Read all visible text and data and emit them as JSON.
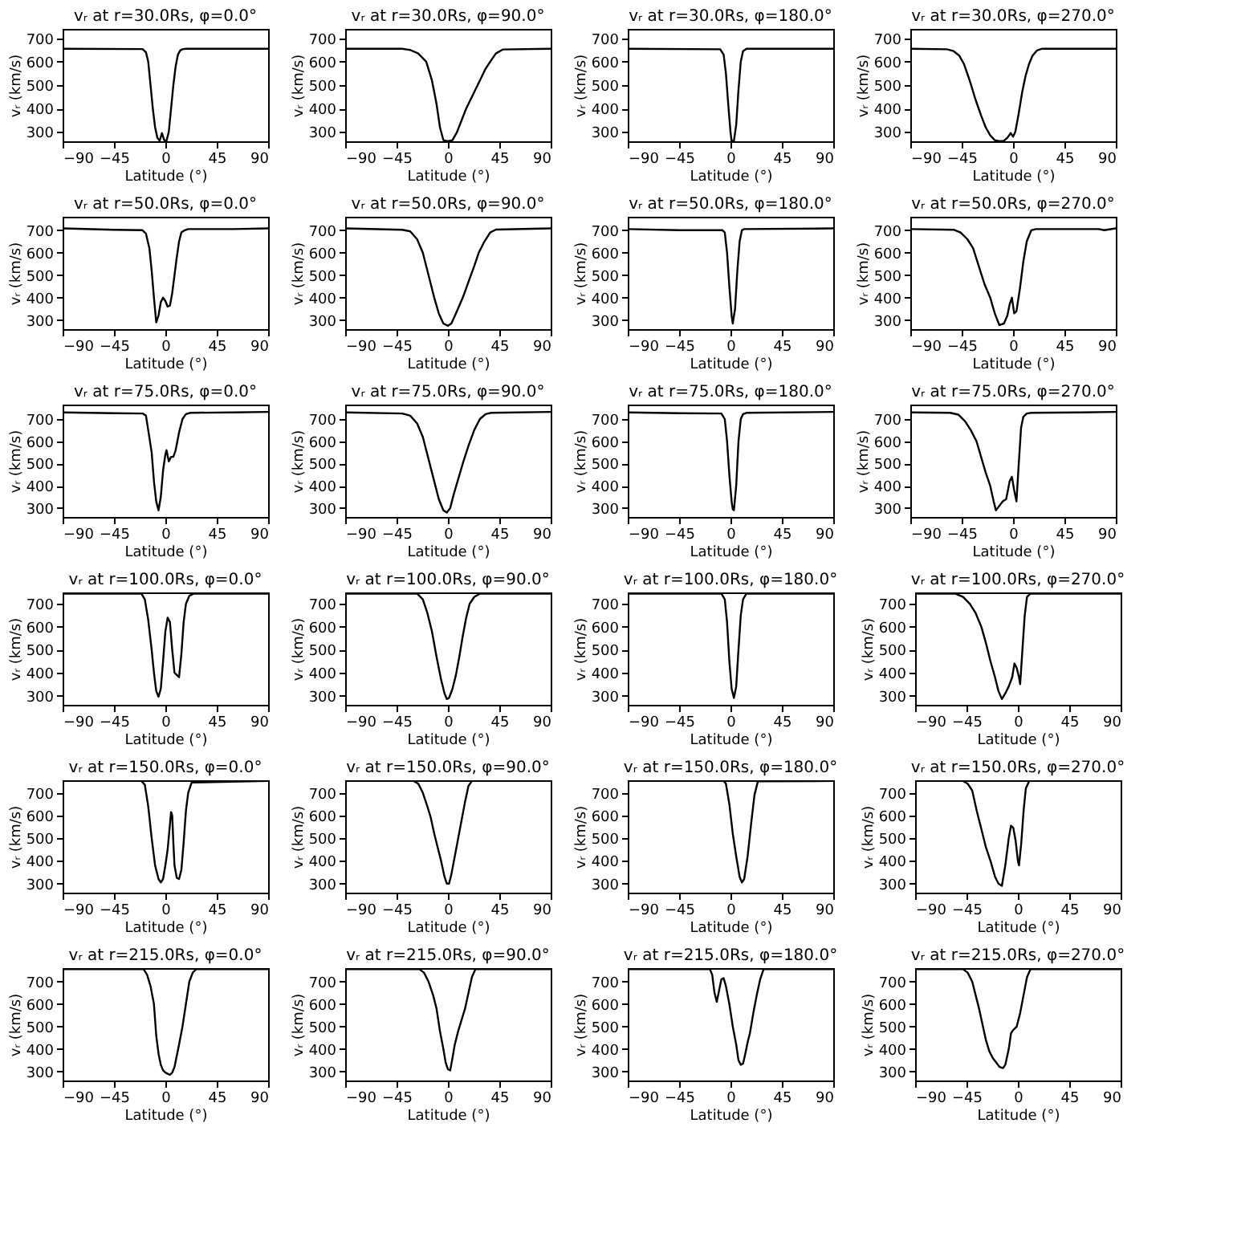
{
  "chart_data": [
    {
      "type": "line",
      "title": "vᵣ at r=30.0Rs, φ=0.0°",
      "xlabel": "Latitude (°)",
      "ylabel": "vᵣ (km/s)",
      "color": "#000000",
      "xlim": [
        -90,
        90
      ],
      "ylim": [
        260,
        740
      ],
      "xticks": [
        -90,
        -45,
        0,
        45,
        90
      ],
      "yticks": [
        300,
        400,
        500,
        600,
        700
      ],
      "x": [
        -90,
        -20,
        -17,
        -15,
        -13,
        -11,
        -9,
        -7,
        -5,
        -3,
        -1,
        1,
        3,
        5,
        7,
        9,
        11,
        13,
        15,
        18,
        90
      ],
      "values": [
        655,
        654,
        640,
        600,
        500,
        400,
        320,
        275,
        262,
        295,
        265,
        262,
        300,
        400,
        500,
        580,
        630,
        648,
        653,
        655,
        655
      ]
    },
    {
      "type": "line",
      "title": "vᵣ at r=30.0Rs, φ=90.0°",
      "xlabel": "Latitude (°)",
      "ylabel": "vᵣ (km/s)",
      "color": "#000000",
      "xlim": [
        -90,
        90
      ],
      "ylim": [
        260,
        740
      ],
      "xticks": [
        -90,
        -45,
        0,
        45,
        90
      ],
      "yticks": [
        300,
        400,
        500,
        600,
        700
      ],
      "x": [
        -90,
        -40,
        -33,
        -26,
        -19,
        -14,
        -10,
        -7,
        -4,
        0,
        4,
        8,
        12,
        16,
        22,
        28,
        33,
        37,
        42,
        48,
        90
      ],
      "values": [
        655,
        655,
        650,
        635,
        600,
        520,
        420,
        320,
        265,
        260,
        265,
        300,
        350,
        400,
        460,
        520,
        570,
        600,
        635,
        652,
        655
      ]
    },
    {
      "type": "line",
      "title": "vᵣ at r=30.0Rs, φ=180.0°",
      "xlabel": "Latitude (°)",
      "ylabel": "vᵣ (km/s)",
      "color": "#000000",
      "xlim": [
        -90,
        90
      ],
      "ylim": [
        260,
        740
      ],
      "xticks": [
        -90,
        -45,
        0,
        45,
        90
      ],
      "yticks": [
        300,
        400,
        500,
        600,
        700
      ],
      "x": [
        -90,
        -9,
        -6,
        -4,
        -2,
        0,
        1,
        3,
        5,
        7,
        9,
        11,
        14,
        90
      ],
      "values": [
        655,
        653,
        630,
        550,
        420,
        300,
        260,
        262,
        330,
        480,
        600,
        645,
        655,
        655
      ]
    },
    {
      "type": "line",
      "title": "vᵣ at r=30.0Rs, φ=270.0°",
      "xlabel": "Latitude (°)",
      "ylabel": "vᵣ (km/s)",
      "color": "#000000",
      "xlim": [
        -90,
        90
      ],
      "ylim": [
        260,
        740
      ],
      "xticks": [
        -90,
        -45,
        0,
        45,
        90
      ],
      "yticks": [
        300,
        400,
        500,
        600,
        700
      ],
      "x": [
        -90,
        -58,
        -52,
        -47,
        -43,
        -38,
        -33,
        -28,
        -24,
        -20,
        -16,
        -12,
        -8,
        -5,
        -2,
        0,
        2,
        5,
        8,
        11,
        14,
        17,
        21,
        25,
        90
      ],
      "values": [
        655,
        653,
        645,
        625,
        590,
        520,
        440,
        370,
        320,
        285,
        265,
        260,
        262,
        275,
        295,
        280,
        300,
        380,
        470,
        540,
        590,
        625,
        648,
        655,
        655
      ]
    },
    {
      "type": "line",
      "title": "vᵣ at r=50.0Rs, φ=0.0°",
      "xlabel": "Latitude (°)",
      "ylabel": "vᵣ (km/s)",
      "color": "#000000",
      "xlim": [
        -90,
        90
      ],
      "ylim": [
        260,
        760
      ],
      "xticks": [
        -90,
        -45,
        0,
        45,
        90
      ],
      "yticks": [
        300,
        400,
        500,
        600,
        700
      ],
      "x": [
        -90,
        -45,
        -20,
        -17,
        -14,
        -12,
        -10,
        -8,
        -6,
        -4,
        -2,
        0,
        2,
        4,
        6,
        8,
        10,
        12,
        14,
        17,
        20,
        60,
        90
      ],
      "values": [
        708,
        702,
        700,
        685,
        620,
        520,
        400,
        290,
        320,
        380,
        400,
        385,
        360,
        365,
        420,
        500,
        580,
        650,
        690,
        700,
        705,
        705,
        708
      ]
    },
    {
      "type": "line",
      "title": "vᵣ at r=50.0Rs, φ=90.0°",
      "xlabel": "Latitude (°)",
      "ylabel": "vᵣ (km/s)",
      "color": "#000000",
      "xlim": [
        -90,
        90
      ],
      "ylim": [
        260,
        760
      ],
      "xticks": [
        -90,
        -45,
        0,
        45,
        90
      ],
      "yticks": [
        300,
        400,
        500,
        600,
        700
      ],
      "x": [
        -90,
        -40,
        -33,
        -27,
        -22,
        -17,
        -12,
        -8,
        -4,
        0,
        3,
        7,
        13,
        18,
        23,
        27,
        32,
        37,
        42,
        90
      ],
      "values": [
        708,
        702,
        695,
        660,
        600,
        500,
        400,
        330,
        285,
        275,
        285,
        330,
        400,
        470,
        540,
        600,
        650,
        690,
        703,
        708
      ]
    },
    {
      "type": "line",
      "title": "vᵣ at r=50.0Rs, φ=180.0°",
      "xlabel": "Latitude (°)",
      "ylabel": "vᵣ (km/s)",
      "color": "#000000",
      "xlim": [
        -90,
        90
      ],
      "ylim": [
        260,
        760
      ],
      "xticks": [
        -90,
        -45,
        0,
        45,
        90
      ],
      "yticks": [
        300,
        400,
        500,
        600,
        700
      ],
      "x": [
        -90,
        -45,
        -7,
        -5,
        -3,
        -1,
        1,
        2,
        4,
        6,
        8,
        10,
        12,
        90
      ],
      "values": [
        705,
        700,
        700,
        690,
        600,
        450,
        320,
        285,
        350,
        520,
        650,
        700,
        705,
        708
      ]
    },
    {
      "type": "line",
      "title": "vᵣ at r=50.0Rs, φ=270.0°",
      "xlabel": "Latitude (°)",
      "ylabel": "vᵣ (km/s)",
      "color": "#000000",
      "xlim": [
        -90,
        90
      ],
      "ylim": [
        260,
        760
      ],
      "xticks": [
        -90,
        -45,
        0,
        45,
        90
      ],
      "yticks": [
        300,
        400,
        500,
        600,
        700
      ],
      "x": [
        -90,
        -52,
        -46,
        -40,
        -35,
        -30,
        -25,
        -20,
        -16,
        -12,
        -8,
        -5,
        -3,
        -1,
        1,
        3,
        6,
        9,
        12,
        16,
        20,
        60,
        75,
        80,
        90
      ],
      "values": [
        705,
        702,
        690,
        660,
        620,
        540,
        460,
        400,
        330,
        278,
        285,
        320,
        370,
        400,
        330,
        340,
        440,
        560,
        650,
        700,
        705,
        705,
        705,
        700,
        708
      ]
    },
    {
      "type": "line",
      "title": "vᵣ at r=75.0Rs, φ=0.0°",
      "xlabel": "Latitude (°)",
      "ylabel": "vᵣ (km/s)",
      "color": "#000000",
      "xlim": [
        -90,
        90
      ],
      "ylim": [
        260,
        765
      ],
      "xticks": [
        -90,
        -45,
        0,
        45,
        90
      ],
      "yticks": [
        300,
        400,
        500,
        600,
        700
      ],
      "x": [
        -90,
        -45,
        -20,
        -17,
        -15,
        -12,
        -10,
        -8,
        -6,
        -4,
        -2,
        0,
        1,
        3,
        5,
        7,
        9,
        12,
        15,
        18,
        22,
        60,
        90
      ],
      "values": [
        730,
        726,
        725,
        715,
        650,
        550,
        420,
        330,
        290,
        350,
        470,
        540,
        560,
        510,
        530,
        530,
        560,
        640,
        700,
        722,
        728,
        730,
        732
      ]
    },
    {
      "type": "line",
      "title": "vᵣ at r=75.0Rs, φ=90.0°",
      "xlabel": "Latitude (°)",
      "ylabel": "vᵣ (km/s)",
      "color": "#000000",
      "xlim": [
        -90,
        90
      ],
      "ylim": [
        260,
        765
      ],
      "xticks": [
        -90,
        -45,
        0,
        45,
        90
      ],
      "yticks": [
        300,
        400,
        500,
        600,
        700
      ],
      "x": [
        -90,
        -40,
        -33,
        -27,
        -22,
        -17,
        -12,
        -8,
        -4,
        -1,
        2,
        5,
        9,
        13,
        18,
        23,
        28,
        33,
        38,
        90
      ],
      "values": [
        730,
        725,
        715,
        680,
        620,
        520,
        420,
        340,
        290,
        280,
        300,
        360,
        430,
        500,
        580,
        650,
        700,
        722,
        728,
        732
      ]
    },
    {
      "type": "line",
      "title": "vᵣ at r=75.0Rs, φ=180.0°",
      "xlabel": "Latitude (°)",
      "ylabel": "vᵣ (km/s)",
      "color": "#000000",
      "xlim": [
        -90,
        90
      ],
      "ylim": [
        260,
        765
      ],
      "xticks": [
        -90,
        -45,
        0,
        45,
        90
      ],
      "yticks": [
        300,
        400,
        500,
        600,
        700
      ],
      "x": [
        -90,
        -45,
        -8,
        -5,
        -3,
        -1,
        1,
        2,
        3,
        5,
        7,
        9,
        11,
        14,
        90
      ],
      "values": [
        730,
        726,
        725,
        700,
        600,
        450,
        330,
        295,
        290,
        400,
        600,
        700,
        722,
        728,
        732
      ]
    },
    {
      "type": "line",
      "title": "vᵣ at r=75.0Rs, φ=270.0°",
      "xlabel": "Latitude (°)",
      "ylabel": "vᵣ (km/s)",
      "color": "#000000",
      "xlim": [
        -90,
        90
      ],
      "ylim": [
        260,
        765
      ],
      "xticks": [
        -90,
        -45,
        0,
        45,
        90
      ],
      "yticks": [
        300,
        400,
        500,
        600,
        700
      ],
      "x": [
        -90,
        -55,
        -48,
        -42,
        -37,
        -32,
        -28,
        -24,
        -20,
        -17,
        -15,
        -12,
        -9,
        -6,
        -3,
        -1,
        1,
        3,
        5,
        7,
        9,
        12,
        16,
        60,
        90
      ],
      "values": [
        730,
        728,
        720,
        690,
        650,
        600,
        530,
        460,
        400,
        330,
        290,
        310,
        330,
        340,
        420,
        440,
        380,
        330,
        500,
        660,
        710,
        725,
        728,
        730,
        732
      ]
    },
    {
      "type": "line",
      "title": "vᵣ at r=100.0Rs, φ=0.0°",
      "xlabel": "Latitude (°)",
      "ylabel": "vᵣ (km/s)",
      "color": "#000000",
      "xlim": [
        -90,
        90
      ],
      "ylim": [
        260,
        750
      ],
      "xticks": [
        -90,
        -45,
        0,
        45,
        90
      ],
      "yticks": [
        300,
        400,
        500,
        600,
        700
      ],
      "x": [
        -90,
        -21,
        -18,
        -15,
        -12,
        -10,
        -8,
        -6,
        -4,
        -2,
        0,
        2,
        4,
        6,
        8,
        10,
        12,
        14,
        16,
        18,
        21,
        25,
        90
      ],
      "values": [
        745,
        745,
        720,
        630,
        500,
        400,
        320,
        295,
        330,
        450,
        580,
        640,
        620,
        500,
        400,
        390,
        380,
        480,
        620,
        700,
        735,
        745,
        745
      ]
    },
    {
      "type": "line",
      "title": "vᵣ at r=100.0Rs, φ=90.0°",
      "xlabel": "Latitude (°)",
      "ylabel": "vᵣ (km/s)",
      "color": "#000000",
      "xlim": [
        -90,
        90
      ],
      "ylim": [
        260,
        750
      ],
      "xticks": [
        -90,
        -45,
        0,
        45,
        90
      ],
      "yticks": [
        300,
        400,
        500,
        600,
        700
      ],
      "x": [
        -90,
        -27,
        -22,
        -18,
        -14,
        -10,
        -6,
        -3,
        -1,
        1,
        4,
        7,
        10,
        13,
        16,
        19,
        23,
        28,
        90
      ],
      "values": [
        745,
        745,
        720,
        660,
        580,
        470,
        370,
        310,
        285,
        290,
        330,
        390,
        470,
        560,
        640,
        700,
        730,
        745,
        745
      ]
    },
    {
      "type": "line",
      "title": "vᵣ at r=100.0Rs, φ=180.0°",
      "xlabel": "Latitude (°)",
      "ylabel": "vᵣ (km/s)",
      "color": "#000000",
      "xlim": [
        -90,
        90
      ],
      "ylim": [
        260,
        750
      ],
      "xticks": [
        -90,
        -45,
        0,
        45,
        90
      ],
      "yticks": [
        300,
        400,
        500,
        600,
        700
      ],
      "x": [
        -90,
        -8,
        -5,
        -3,
        -1,
        1,
        3,
        5,
        7,
        9,
        11,
        14,
        90
      ],
      "values": [
        745,
        745,
        720,
        620,
        450,
        330,
        290,
        340,
        500,
        650,
        720,
        745,
        745
      ]
    },
    {
      "type": "line",
      "title": "vᵣ at r=100.0Rs, φ=270.0°",
      "xlabel": "Latitude (°)",
      "ylabel": "vᵣ (km/s)",
      "color": "#000000",
      "xlim": [
        -90,
        90
      ],
      "ylim": [
        260,
        750
      ],
      "xticks": [
        -90,
        -45,
        0,
        45,
        90
      ],
      "yticks": [
        300,
        400,
        500,
        600,
        700
      ],
      "x": [
        -90,
        -55,
        -48,
        -42,
        -37,
        -32,
        -28,
        -24,
        -20,
        -17,
        -14,
        -11,
        -8,
        -5,
        -3,
        -1,
        1,
        2,
        4,
        6,
        8,
        11,
        90
      ],
      "values": [
        745,
        745,
        730,
        700,
        660,
        600,
        530,
        450,
        380,
        320,
        285,
        310,
        340,
        380,
        440,
        420,
        380,
        350,
        500,
        650,
        730,
        745,
        745
      ]
    },
    {
      "type": "line",
      "title": "vᵣ at r=150.0Rs, φ=0.0°",
      "xlabel": "Latitude (°)",
      "ylabel": "vᵣ (km/s)",
      "color": "#000000",
      "xlim": [
        -90,
        90
      ],
      "ylim": [
        260,
        755
      ],
      "xticks": [
        -90,
        -45,
        0,
        45,
        90
      ],
      "yticks": [
        300,
        400,
        500,
        600,
        700
      ],
      "x": [
        -90,
        -21,
        -18,
        -15,
        -12,
        -9,
        -6,
        -4,
        -2,
        0,
        2,
        4,
        5,
        6,
        7,
        8,
        10,
        12,
        14,
        16,
        18,
        20,
        23,
        90
      ],
      "values": [
        752,
        752,
        735,
        640,
        500,
        380,
        320,
        305,
        320,
        380,
        450,
        560,
        615,
        600,
        480,
        380,
        325,
        320,
        360,
        480,
        620,
        700,
        745,
        752
      ]
    },
    {
      "type": "line",
      "title": "vᵣ at r=150.0Rs, φ=90.0°",
      "xlabel": "Latitude (°)",
      "ylabel": "vᵣ (km/s)",
      "color": "#000000",
      "xlim": [
        -90,
        90
      ],
      "ylim": [
        260,
        755
      ],
      "xticks": [
        -90,
        -45,
        0,
        45,
        90
      ],
      "yticks": [
        300,
        400,
        500,
        600,
        700
      ],
      "x": [
        -90,
        -30,
        -26,
        -22,
        -18,
        -15,
        -12,
        -9,
        -6,
        -3,
        -1,
        1,
        3,
        6,
        9,
        12,
        15,
        18,
        21,
        90
      ],
      "values": [
        752,
        752,
        740,
        700,
        640,
        590,
        520,
        460,
        400,
        330,
        300,
        300,
        340,
        420,
        500,
        580,
        660,
        730,
        752,
        752
      ]
    },
    {
      "type": "line",
      "title": "vᵣ at r=150.0Rs, φ=180.0°",
      "xlabel": "Latitude (°)",
      "ylabel": "vᵣ (km/s)",
      "color": "#000000",
      "xlim": [
        -90,
        90
      ],
      "ylim": [
        260,
        755
      ],
      "xticks": [
        -90,
        -45,
        0,
        45,
        90
      ],
      "yticks": [
        300,
        400,
        500,
        600,
        700
      ],
      "x": [
        -90,
        -6,
        -4,
        -1,
        2,
        5,
        8,
        10,
        12,
        15,
        18,
        21,
        24,
        90
      ],
      "values": [
        752,
        752,
        740,
        650,
        520,
        420,
        330,
        305,
        320,
        420,
        560,
        690,
        750,
        752
      ]
    },
    {
      "type": "line",
      "title": "vᵣ at r=150.0Rs, φ=270.0°",
      "xlabel": "Latitude (°)",
      "ylabel": "vᵣ (km/s)",
      "color": "#000000",
      "xlim": [
        -90,
        90
      ],
      "ylim": [
        260,
        755
      ],
      "xticks": [
        -90,
        -45,
        0,
        45,
        90
      ],
      "yticks": [
        300,
        400,
        500,
        600,
        700
      ],
      "x": [
        -90,
        -48,
        -44,
        -40,
        -36,
        -32,
        -28,
        -24,
        -20,
        -17,
        -14,
        -11,
        -8,
        -6,
        -4,
        -2,
        0,
        1,
        3,
        5,
        7,
        10,
        90
      ],
      "values": [
        752,
        752,
        740,
        710,
        620,
        540,
        460,
        400,
        330,
        300,
        290,
        380,
        500,
        555,
        545,
        490,
        400,
        380,
        480,
        620,
        720,
        752,
        752
      ]
    },
    {
      "type": "line",
      "title": "vᵣ at r=215.0Rs, φ=0.0°",
      "xlabel": "Latitude (°)",
      "ylabel": "vᵣ (km/s)",
      "color": "#000000",
      "xlim": [
        -90,
        90
      ],
      "ylim": [
        260,
        760
      ],
      "xticks": [
        -90,
        -45,
        0,
        45,
        90
      ],
      "yticks": [
        300,
        400,
        500,
        600,
        700
      ],
      "x": [
        -90,
        -19,
        -16,
        -13,
        -10,
        -8,
        -6,
        -4,
        -2,
        0,
        2,
        4,
        6,
        8,
        10,
        12,
        15,
        18,
        21,
        24,
        27,
        90
      ],
      "values": [
        755,
        755,
        730,
        680,
        600,
        460,
        380,
        330,
        305,
        295,
        290,
        285,
        295,
        320,
        370,
        420,
        500,
        600,
        700,
        740,
        755,
        755
      ]
    },
    {
      "type": "line",
      "title": "vᵣ at r=215.0Rs, φ=90.0°",
      "xlabel": "Latitude (°)",
      "ylabel": "vᵣ (km/s)",
      "color": "#000000",
      "xlim": [
        -90,
        90
      ],
      "ylim": [
        260,
        760
      ],
      "xticks": [
        -90,
        -45,
        0,
        45,
        90
      ],
      "yticks": [
        300,
        400,
        500,
        600,
        700
      ],
      "x": [
        -90,
        -25,
        -21,
        -17,
        -13,
        -10,
        -7,
        -4,
        -2,
        0,
        2,
        4,
        6,
        9,
        12,
        15,
        18,
        21,
        24,
        90
      ],
      "values": [
        755,
        755,
        740,
        700,
        640,
        580,
        480,
        400,
        340,
        310,
        305,
        360,
        420,
        480,
        530,
        580,
        650,
        720,
        755,
        755
      ]
    },
    {
      "type": "line",
      "title": "vᵣ at r=215.0Rs, φ=180.0°",
      "xlabel": "Latitude (°)",
      "ylabel": "vᵣ (km/s)",
      "color": "#000000",
      "xlim": [
        -90,
        90
      ],
      "ylim": [
        260,
        760
      ],
      "xticks": [
        -90,
        -45,
        0,
        45,
        90
      ],
      "yticks": [
        300,
        400,
        500,
        600,
        700
      ],
      "x": [
        -90,
        -18,
        -16,
        -14,
        -12,
        -10,
        -8,
        -6,
        -4,
        -1,
        2,
        5,
        7,
        9,
        11,
        13,
        15,
        17,
        20,
        23,
        26,
        29,
        90
      ],
      "values": [
        755,
        755,
        730,
        650,
        610,
        660,
        710,
        715,
        680,
        600,
        500,
        420,
        350,
        330,
        335,
        380,
        430,
        470,
        560,
        640,
        710,
        755,
        755
      ]
    },
    {
      "type": "line",
      "title": "vᵣ at r=215.0Rs, φ=270.0°",
      "xlabel": "Latitude (°)",
      "ylabel": "vᵣ (km/s)",
      "color": "#000000",
      "xlim": [
        -90,
        90
      ],
      "ylim": [
        260,
        760
      ],
      "xticks": [
        -90,
        -45,
        0,
        45,
        90
      ],
      "yticks": [
        300,
        400,
        500,
        600,
        700
      ],
      "x": [
        -90,
        -48,
        -44,
        -40,
        -37,
        -34,
        -31,
        -28,
        -25,
        -22,
        -19,
        -16,
        -13,
        -11,
        -8,
        -6,
        -4,
        -1,
        2,
        5,
        8,
        11,
        90
      ],
      "values": [
        755,
        755,
        740,
        700,
        640,
        580,
        510,
        440,
        390,
        360,
        340,
        320,
        315,
        330,
        400,
        470,
        485,
        500,
        560,
        640,
        720,
        755,
        755
      ]
    }
  ]
}
